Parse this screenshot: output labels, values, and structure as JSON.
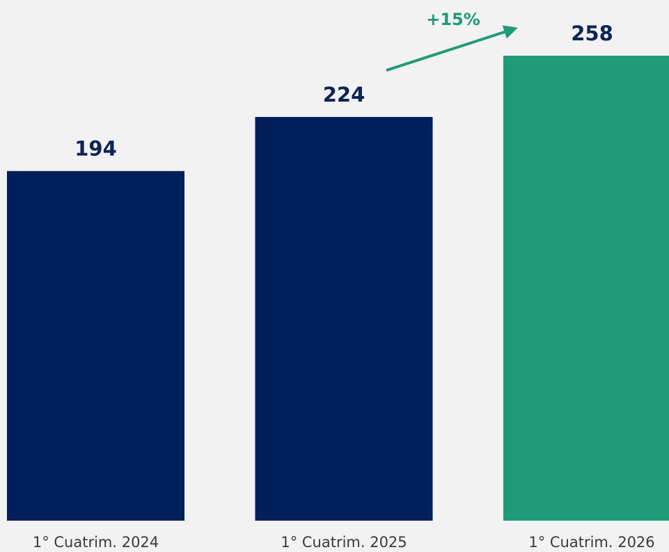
{
  "chart_data": {
    "type": "bar",
    "categories": [
      "1° Cuatrim. 2024",
      "1° Cuatrim. 2025",
      "1° Cuatrim. 2026"
    ],
    "values": [
      194,
      224,
      258
    ],
    "colors": [
      "#001f5b",
      "#001f5b",
      "#1f9b78"
    ],
    "annotation": {
      "text": "+15%",
      "color": "#1f9b78"
    }
  }
}
